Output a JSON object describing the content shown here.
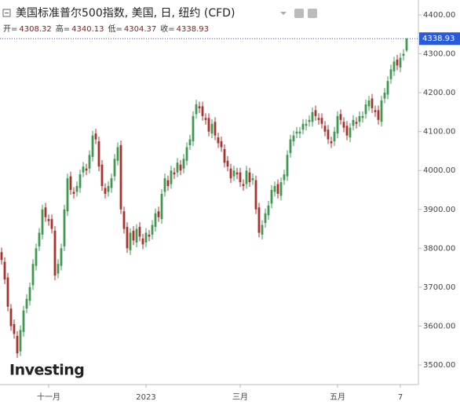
{
  "chart_data": {
    "type": "candlestick",
    "title": "美国标准普尔500指数, 美国, 日, 纽约 (CFD)",
    "ohlc_labels": [
      "开=",
      "高=",
      "低=",
      "收="
    ],
    "watermark": "Investing",
    "up_color": "#3d9a50",
    "down_color": "#a8322d",
    "xlim": [
      -0.5,
      132.75
    ],
    "xticks": [
      {
        "value": 15,
        "label": "十一月"
      },
      {
        "value": 46,
        "label": "2023"
      },
      {
        "value": 76,
        "label": "三月"
      },
      {
        "value": 107,
        "label": "五月"
      },
      {
        "value": 127,
        "label": "7"
      }
    ],
    "ylim": [
      3449.6,
      4438.3
    ],
    "yticks": [
      {
        "value": 3500,
        "label": "3500.00"
      },
      {
        "value": 3600,
        "label": "3600.00"
      },
      {
        "value": 3700,
        "label": "3700.00"
      },
      {
        "value": 3800,
        "label": "3800.00"
      },
      {
        "value": 3900,
        "label": "3900.00"
      },
      {
        "value": 4000,
        "label": "4000.00"
      },
      {
        "value": 4100,
        "label": "4100.00"
      },
      {
        "value": 4200,
        "label": "4200.00"
      },
      {
        "value": 4300,
        "label": "4300.00"
      },
      {
        "value": 4400,
        "label": "4400.00"
      }
    ],
    "open": [
      3790,
      3765,
      3725,
      3645,
      3605,
      3575,
      3535,
      3585,
      3645,
      3665,
      3705,
      3755,
      3805,
      3835,
      3905,
      3875,
      3875,
      3845,
      3735,
      3755,
      3805,
      3895,
      3985,
      3945,
      3945,
      3955,
      3995,
      4005,
      4005,
      4035,
      4095,
      4075,
      4015,
      3955,
      3945,
      3955,
      3985,
      4025,
      4065,
      3895,
      3855,
      3795,
      3845,
      3815,
      3855,
      3825,
      3815,
      3835,
      3835,
      3855,
      3895,
      3875,
      3945,
      3975,
      3965,
      3995,
      3995,
      4015,
      4005,
      4025,
      4065,
      4075,
      4145,
      4165,
      4165,
      4135,
      4135,
      4095,
      4125,
      4085,
      4075,
      4055,
      4025,
      4005,
      3985,
      3995,
      3995,
      3965,
      3965,
      3995,
      3975,
      3975,
      3905,
      3835,
      3865,
      3885,
      3915,
      3945,
      3965,
      3935,
      3975,
      3985,
      4045,
      4075,
      4095,
      4095,
      4105,
      4115,
      4125,
      4125,
      4155,
      4135,
      4135,
      4115,
      4105,
      4075,
      4075,
      4095,
      4145,
      4125,
      4115,
      4085,
      4115,
      4125,
      4125,
      4135,
      4145,
      4165,
      4185,
      4155,
      4155,
      4125,
      4185,
      4195,
      4235,
      4255,
      4285,
      4265,
      4295,
      4308.32
    ],
    "high": [
      3802,
      3777,
      3737,
      3657,
      3617,
      3587,
      3602,
      3652,
      3682,
      3712,
      3772,
      3812,
      3852,
      3912,
      3917,
      3887,
      3887,
      3857,
      3772,
      3812,
      3912,
      3992,
      3997,
      3957,
      3972,
      4002,
      4022,
      4017,
      4052,
      4102,
      4107,
      4087,
      4027,
      3967,
      3972,
      3992,
      4042,
      4072,
      4077,
      3907,
      3867,
      3852,
      3857,
      3862,
      3867,
      3837,
      3852,
      3847,
      3872,
      3902,
      3907,
      3952,
      3992,
      3987,
      4012,
      4007,
      4032,
      4027,
      4042,
      4072,
      4092,
      4152,
      4182,
      4177,
      4177,
      4147,
      4147,
      4132,
      4137,
      4097,
      4087,
      4067,
      4037,
      4017,
      4012,
      4007,
      4007,
      3977,
      4012,
      4007,
      3992,
      3987,
      3917,
      3872,
      3902,
      3922,
      3962,
      3972,
      3977,
      3982,
      4002,
      4052,
      4092,
      4102,
      4112,
      4112,
      4132,
      4132,
      4142,
      4162,
      4167,
      4147,
      4147,
      4127,
      4117,
      4087,
      4112,
      4152,
      4157,
      4137,
      4127,
      4122,
      4142,
      4137,
      4152,
      4152,
      4182,
      4192,
      4197,
      4167,
      4167,
      4192,
      4212,
      4242,
      4272,
      4292,
      4297,
      4302,
      4312,
      4340.13
    ],
    "low": [
      3758,
      3708,
      3638,
      3588,
      3568,
      3518,
      3523,
      3573,
      3633,
      3653,
      3693,
      3743,
      3793,
      3823,
      3868,
      3858,
      3838,
      3718,
      3723,
      3743,
      3793,
      3883,
      3938,
      3928,
      3933,
      3943,
      3983,
      3988,
      3993,
      4023,
      4068,
      3998,
      3948,
      3928,
      3933,
      3943,
      3973,
      4013,
      3888,
      3838,
      3788,
      3783,
      3808,
      3803,
      3818,
      3798,
      3803,
      3818,
      3823,
      3843,
      3868,
      3863,
      3933,
      3948,
      3953,
      3978,
      3983,
      3988,
      3993,
      4013,
      4053,
      4063,
      4133,
      4148,
      4128,
      4118,
      4088,
      4083,
      4078,
      4058,
      4048,
      4008,
      3998,
      3968,
      3973,
      3978,
      3958,
      3948,
      3953,
      3958,
      3963,
      3888,
      3828,
      3823,
      3853,
      3873,
      3903,
      3933,
      3928,
      3923,
      3963,
      3973,
      4033,
      4063,
      4083,
      4083,
      4093,
      4103,
      4113,
      4113,
      4128,
      4118,
      4108,
      4088,
      4068,
      4058,
      4063,
      4083,
      4118,
      4098,
      4078,
      4073,
      4103,
      4108,
      4113,
      4123,
      4133,
      4153,
      4148,
      4138,
      4118,
      4113,
      4173,
      4183,
      4223,
      4243,
      4258,
      4253,
      4283,
      4304.37
    ],
    "close": [
      3770,
      3720,
      3650,
      3600,
      3580,
      3530,
      3590,
      3640,
      3670,
      3700,
      3760,
      3800,
      3840,
      3900,
      3880,
      3870,
      3850,
      3730,
      3760,
      3800,
      3900,
      3980,
      3950,
      3940,
      3960,
      3990,
      4010,
      4000,
      4040,
      4090,
      4080,
      4010,
      3960,
      3940,
      3960,
      3980,
      4030,
      4060,
      3900,
      3850,
      3800,
      3840,
      3820,
      3850,
      3830,
      3810,
      3840,
      3830,
      3860,
      3890,
      3880,
      3940,
      3980,
      3960,
      4000,
      3990,
      4020,
      4000,
      4030,
      4060,
      4080,
      4140,
      4170,
      4160,
      4140,
      4130,
      4100,
      4120,
      4090,
      4070,
      4060,
      4020,
      4010,
      3980,
      4000,
      3990,
      3970,
      3960,
      4000,
      3970,
      3980,
      3900,
      3840,
      3860,
      3890,
      3910,
      3950,
      3960,
      3940,
      3970,
      3990,
      4040,
      4080,
      4090,
      4100,
      4100,
      4120,
      4120,
      4130,
      4150,
      4140,
      4130,
      4120,
      4100,
      4080,
      4070,
      4100,
      4140,
      4130,
      4110,
      4090,
      4110,
      4130,
      4120,
      4140,
      4140,
      4170,
      4180,
      4160,
      4150,
      4130,
      4180,
      4200,
      4230,
      4260,
      4280,
      4270,
      4290,
      4300,
      4338.93
    ]
  }
}
